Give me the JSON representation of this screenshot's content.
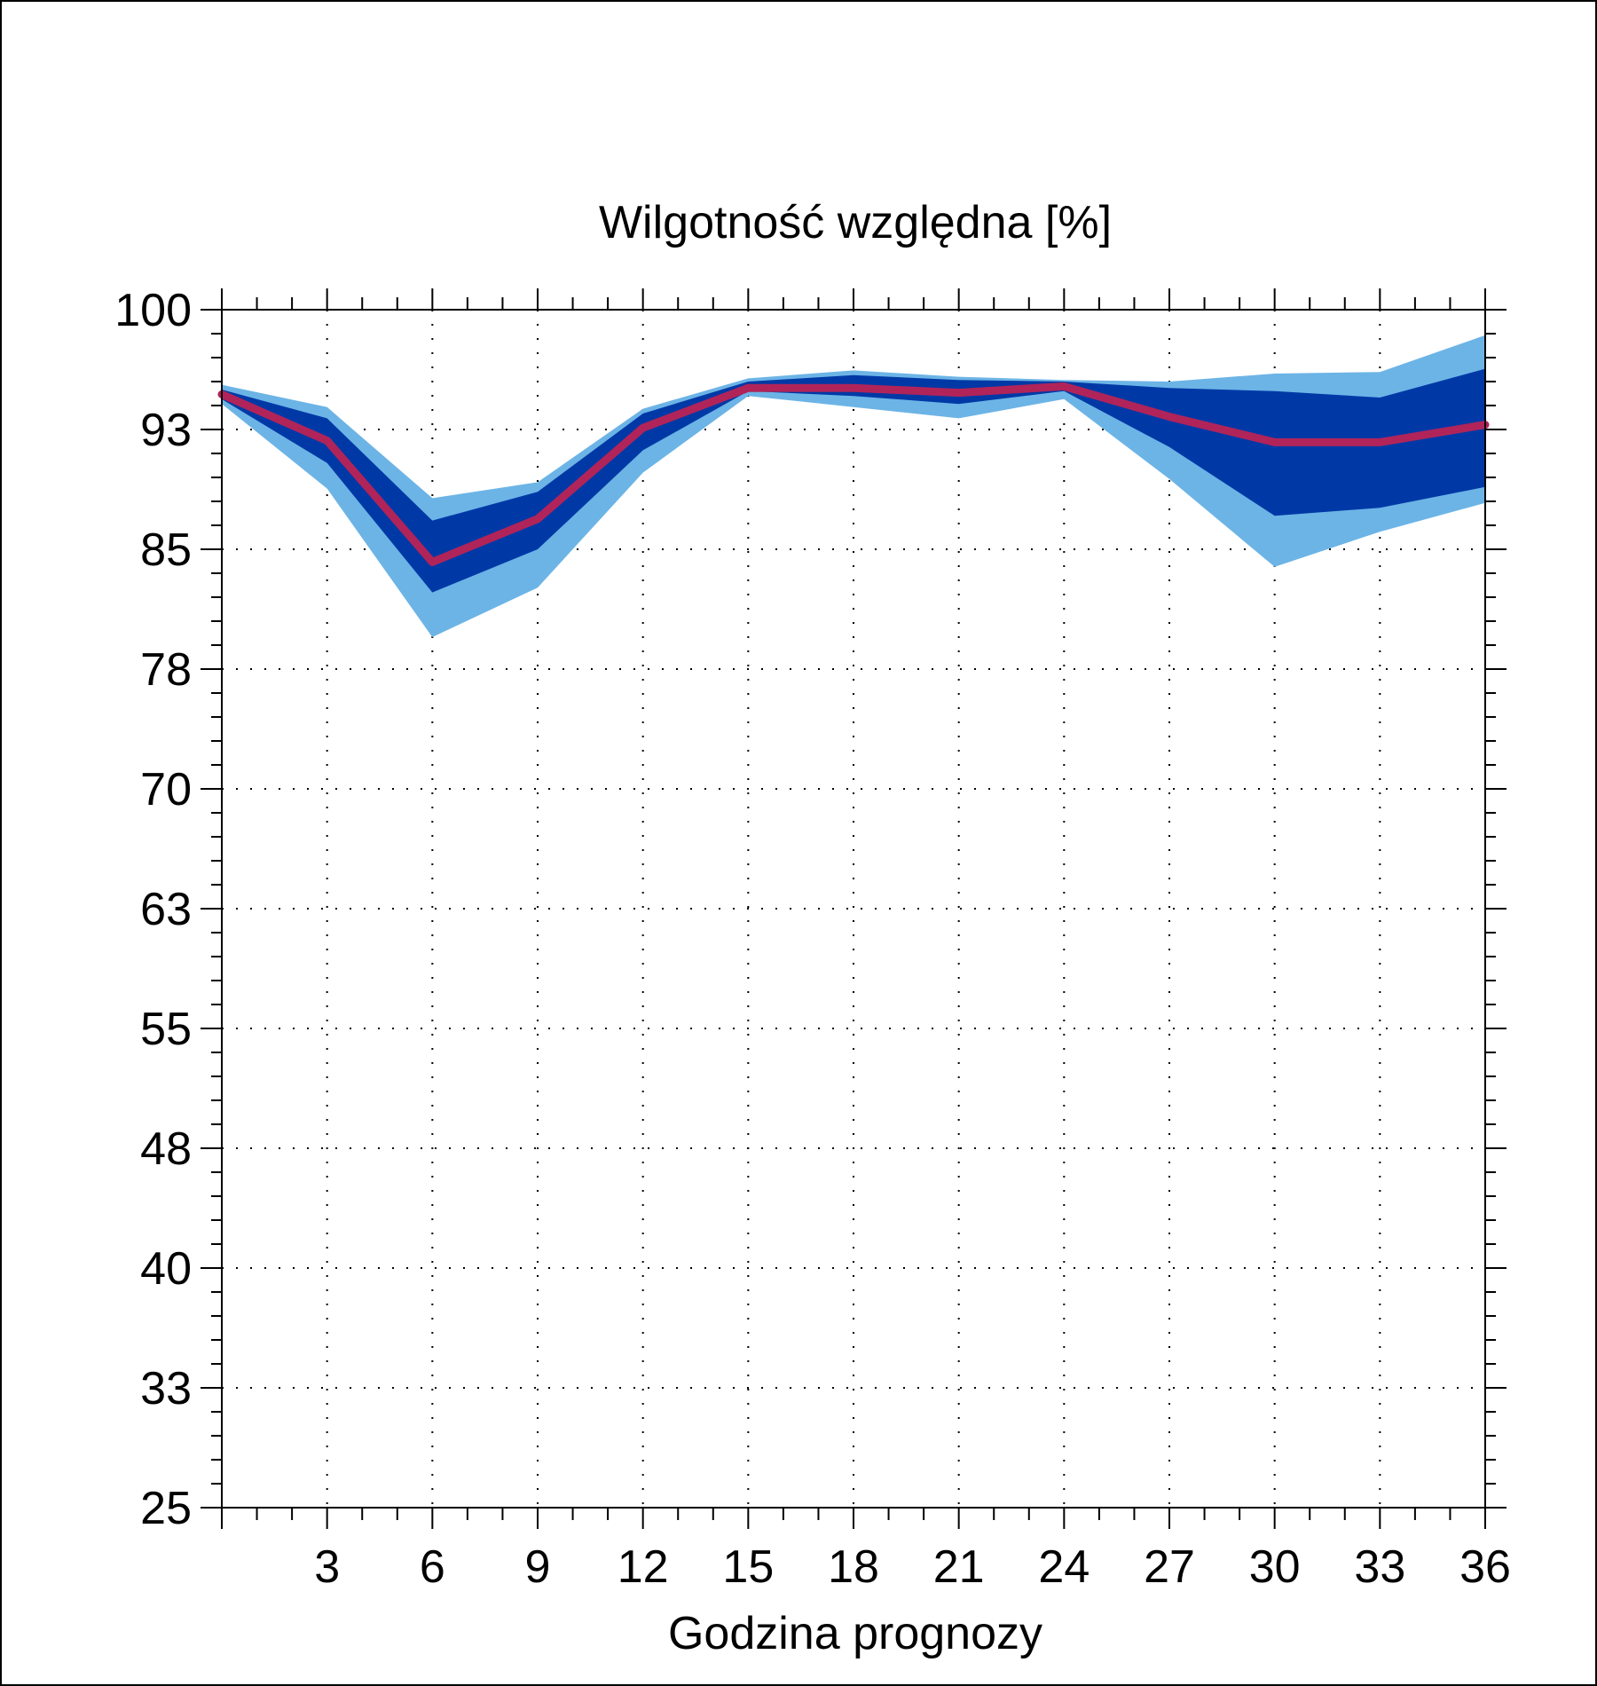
{
  "chart_data": {
    "type": "area",
    "title": "Wilgotność względna [%]",
    "xlabel": "Godzina prognozy",
    "ylabel": "",
    "x": [
      0,
      3,
      6,
      9,
      12,
      15,
      18,
      21,
      24,
      27,
      30,
      33,
      36
    ],
    "x_tick_labels": [
      "3",
      "6",
      "9",
      "12",
      "15",
      "18",
      "21",
      "24",
      "27",
      "30",
      "33",
      "36"
    ],
    "x_tick_values": [
      3,
      6,
      9,
      12,
      15,
      18,
      21,
      24,
      27,
      30,
      33,
      36
    ],
    "y_tick_labels": [
      "100",
      "93",
      "85",
      "78",
      "70",
      "63",
      "55",
      "48",
      "40",
      "33",
      "25"
    ],
    "y_tick_values": [
      100,
      92.5,
      85,
      77.5,
      70,
      62.5,
      55,
      47.5,
      40,
      32.5,
      25
    ],
    "xlim": [
      0,
      36
    ],
    "ylim": [
      25,
      100
    ],
    "grid": true,
    "bands": [
      {
        "role": "outer",
        "color": "#6cb4e6",
        "upper": [
          95.3,
          93.9,
          88.2,
          89.2,
          93.8,
          95.7,
          96.2,
          95.8,
          95.6,
          95.5,
          96.0,
          96.1,
          98.4
        ],
        "lower": [
          94.1,
          88.8,
          79.5,
          82.6,
          89.8,
          94.6,
          93.9,
          93.2,
          94.4,
          89.4,
          83.9,
          86.1,
          87.9
        ]
      },
      {
        "role": "inner",
        "color": "#0039a6",
        "upper": [
          95.0,
          93.2,
          86.8,
          88.6,
          93.5,
          95.5,
          95.9,
          95.6,
          95.5,
          95.1,
          94.9,
          94.5,
          96.3
        ],
        "lower": [
          94.4,
          90.4,
          82.3,
          85.0,
          91.2,
          94.9,
          94.6,
          94.1,
          94.9,
          91.4,
          87.1,
          87.6,
          88.9
        ]
      }
    ],
    "series": [
      {
        "role": "median",
        "color": "#b0245a",
        "values": [
          94.7,
          91.8,
          84.2,
          86.9,
          92.6,
          95.1,
          95.1,
          94.8,
          95.2,
          93.3,
          91.7,
          91.7,
          92.8
        ]
      }
    ],
    "frame_color": "#000000",
    "background": "#ffffff"
  }
}
